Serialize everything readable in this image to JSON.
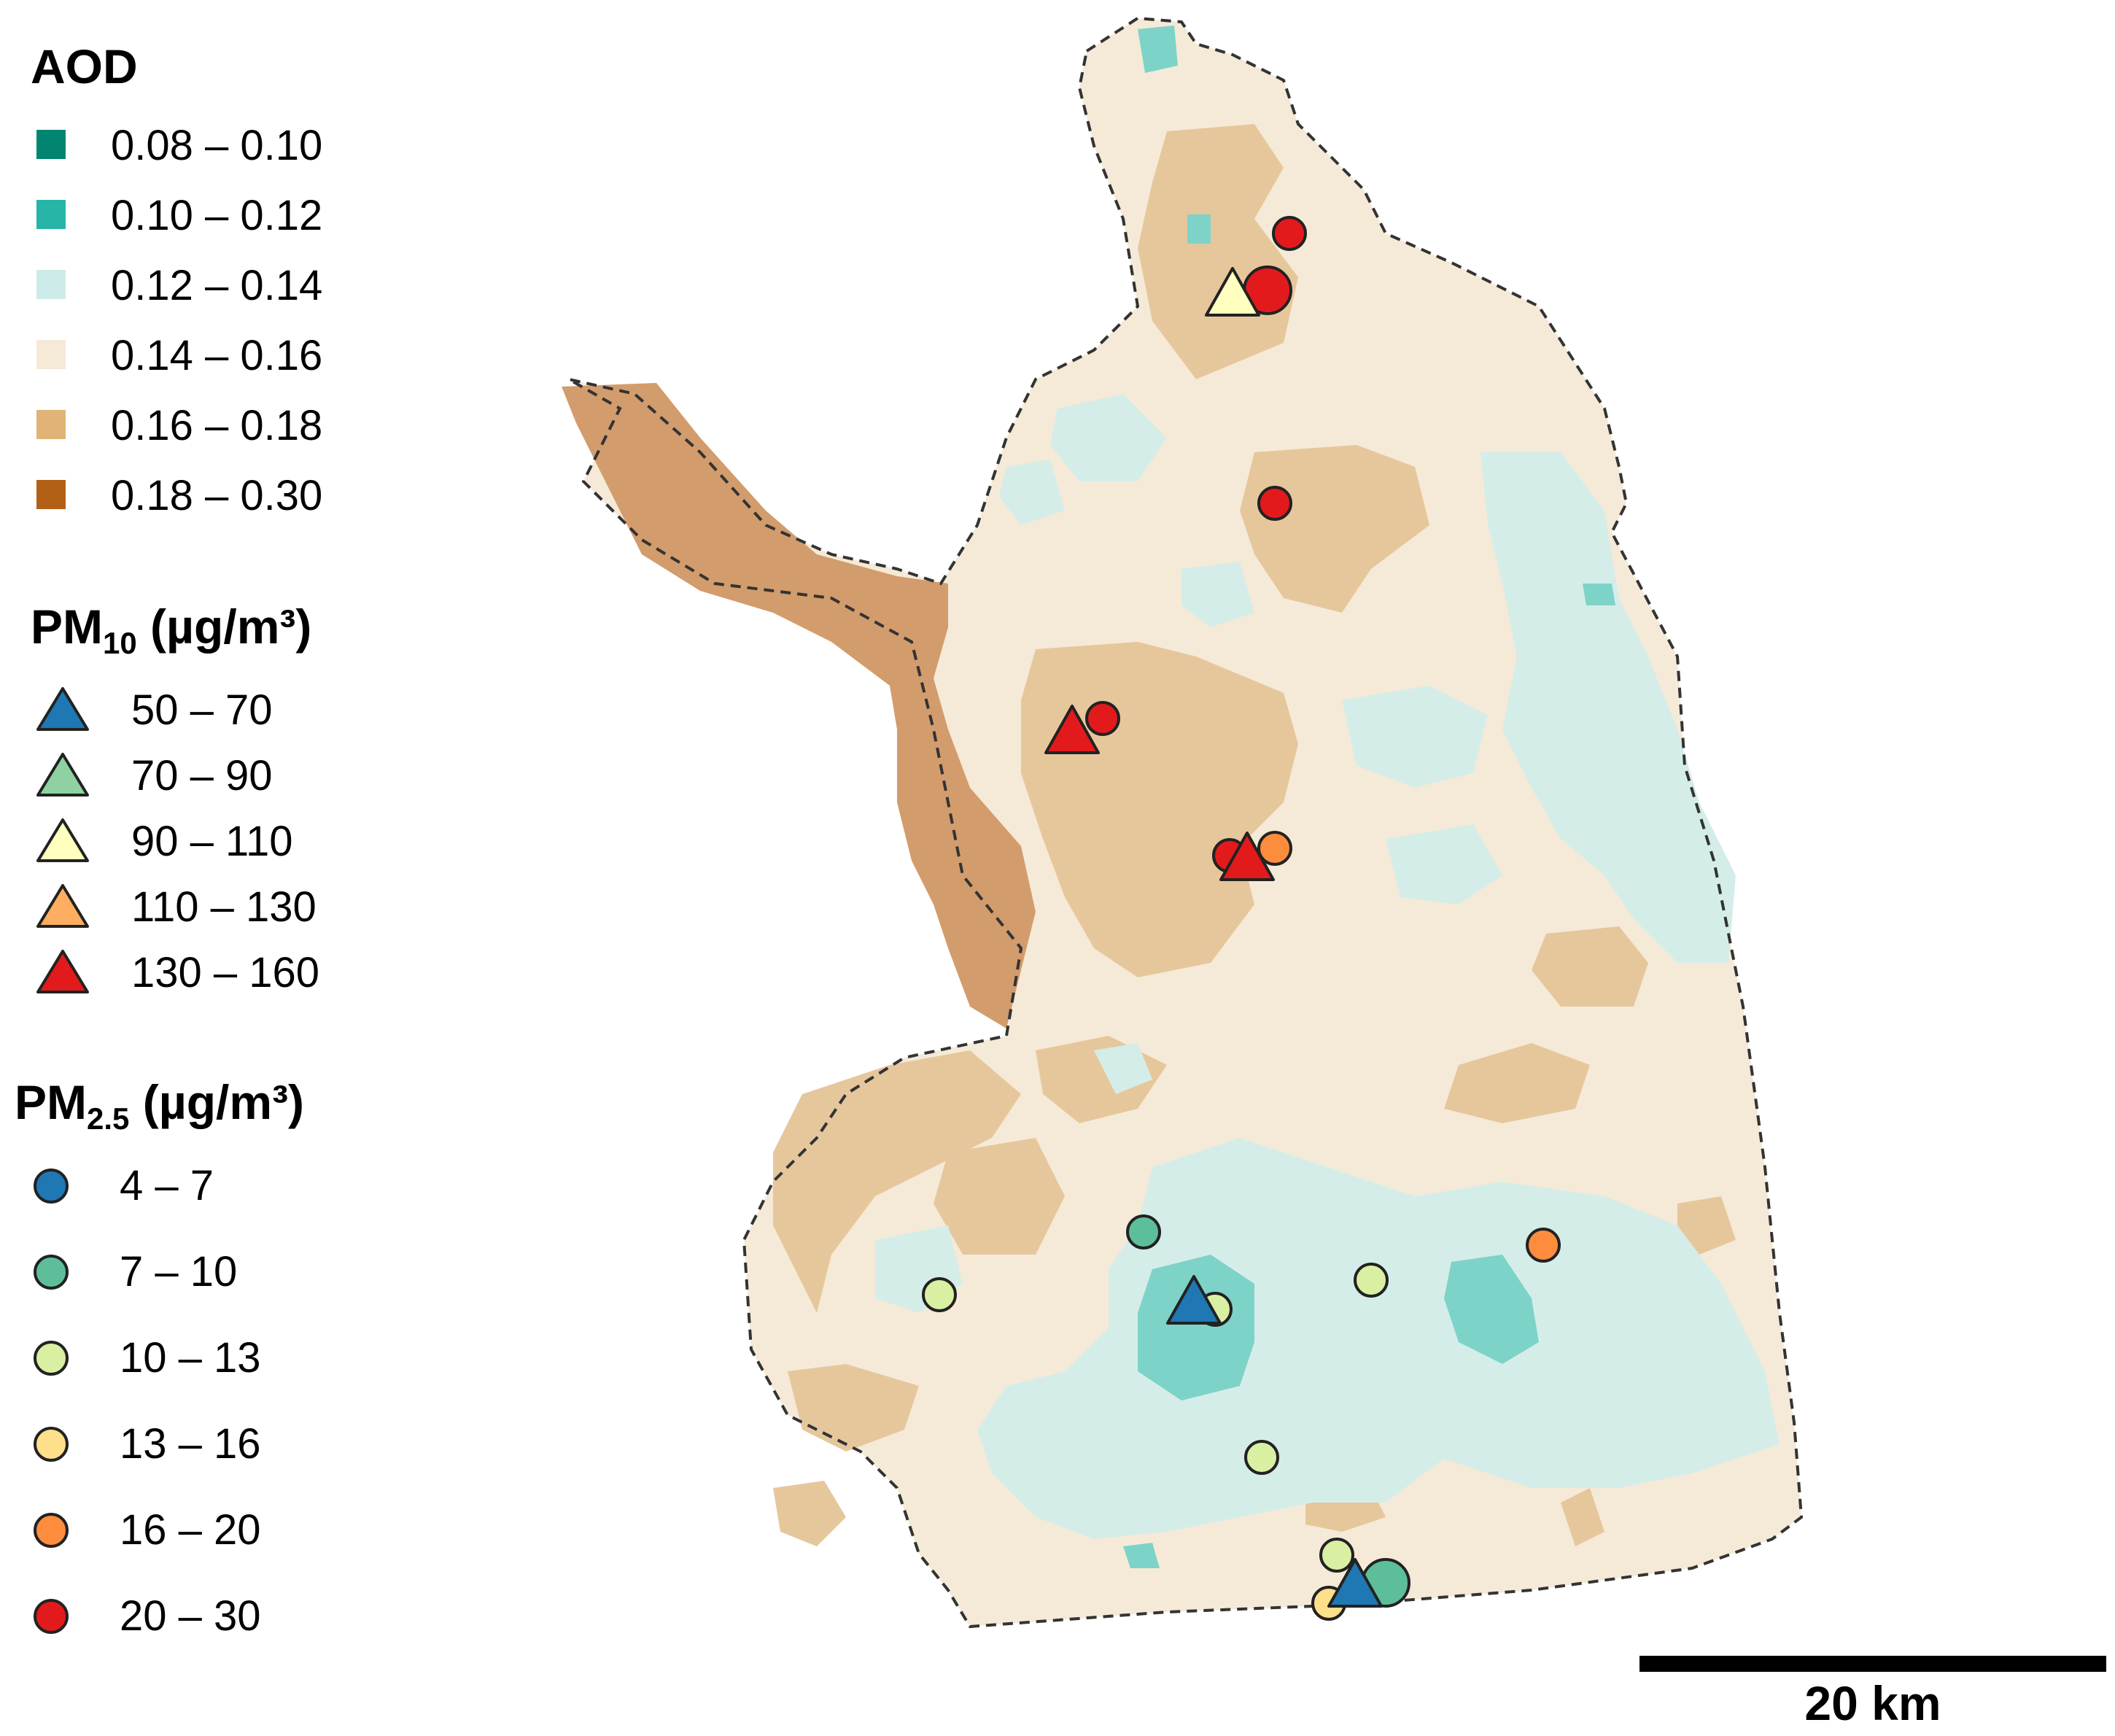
{
  "legend": {
    "aod": {
      "title": "AOD",
      "items": [
        {
          "label": "0.08 – 0.10",
          "color": "#018571"
        },
        {
          "label": "0.10 – 0.12",
          "color": "#26b5a6"
        },
        {
          "label": "0.12 – 0.14",
          "color": "#cdebe8"
        },
        {
          "label": "0.14 – 0.16",
          "color": "#f5ead7"
        },
        {
          "label": "0.16 – 0.18",
          "color": "#dfb476"
        },
        {
          "label": "0.18 – 0.30",
          "color": "#b26016"
        }
      ]
    },
    "pm10": {
      "title_main": "PM",
      "title_sub": "10",
      "title_unit": " (µg/m³)",
      "items": [
        {
          "label": "50 – 70",
          "color": "#1f78b4"
        },
        {
          "label": "70 – 90",
          "color": "#8ed1a3"
        },
        {
          "label": "90 – 110",
          "color": "#ffffbf"
        },
        {
          "label": "110 – 130",
          "color": "#fdae61"
        },
        {
          "label": "130 – 160",
          "color": "#e31a1c"
        }
      ]
    },
    "pm25": {
      "title_main": "PM",
      "title_sub": "2.5",
      "title_unit": " (µg/m³)",
      "items": [
        {
          "label": "4 – 7",
          "color": "#1f78b4"
        },
        {
          "label": "7 – 10",
          "color": "#5dbf9a"
        },
        {
          "label": "10 – 13",
          "color": "#d9f0a3"
        },
        {
          "label": "13 – 16",
          "color": "#fee08b"
        },
        {
          "label": "16 – 20",
          "color": "#fd8d3c"
        },
        {
          "label": "20 – 30",
          "color": "#e31a1c"
        }
      ]
    }
  },
  "scale_bar": {
    "label": "20 km"
  },
  "map": {
    "pm10_stations": [
      {
        "class": "90 – 110"
      },
      {
        "class": "130 – 160"
      },
      {
        "class": "130 – 160"
      },
      {
        "class": "50 – 70"
      },
      {
        "class": "50 – 70"
      }
    ],
    "pm25_stations": [
      {
        "class": "20 – 30"
      },
      {
        "class": "20 – 30"
      },
      {
        "class": "20 – 30"
      },
      {
        "class": "20 – 30"
      },
      {
        "class": "16 – 20"
      },
      {
        "class": "20 – 30"
      },
      {
        "class": "7 – 10"
      },
      {
        "class": "10 – 13"
      },
      {
        "class": "10 – 13"
      },
      {
        "class": "16 – 20"
      },
      {
        "class": "10 – 13"
      },
      {
        "class": "10 – 13"
      },
      {
        "class": "10 – 13"
      },
      {
        "class": "7 – 10"
      },
      {
        "class": "13 – 16"
      }
    ]
  }
}
